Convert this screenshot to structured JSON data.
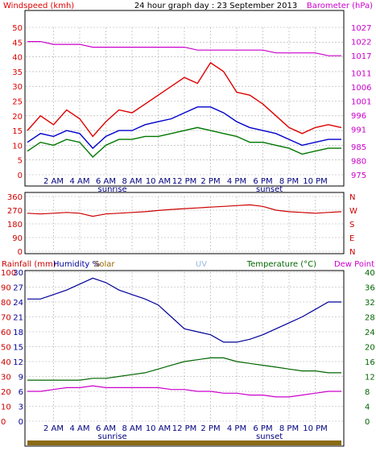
{
  "colors": {
    "wind_speed": "#dd0000",
    "wind_gust": "#dd0000",
    "wind_avg": "#0000cc",
    "wind_low": "#007700",
    "barometer": "#cc00cc",
    "direction": "#cc0000",
    "humidity": "#000099",
    "temperature": "#006600",
    "dew_point": "#cc00cc",
    "rainfall": "#cc0000",
    "solar": "#996600",
    "uv": "#99bbdd",
    "rain_bar": "#8b6b12",
    "grid": "#aaaaaa"
  },
  "chart_data": [
    {
      "type": "line",
      "title": "24 hour graph day : 23 September 2013",
      "left_axis_label": "Windspeed (kmh)",
      "right_axis_label": "Barometer (hPa)",
      "x_tick_labels": [
        "2 AM",
        "4 AM",
        "6 AM",
        "8 AM",
        "10 AM",
        "12 PM",
        "2 PM",
        "4 PM",
        "6 PM",
        "8 PM",
        "10 PM"
      ],
      "sunrise_label": "sunrise",
      "sunset_label": "sunset",
      "y_ticks": [
        0,
        5,
        10,
        15,
        20,
        25,
        30,
        35,
        40,
        45,
        50
      ],
      "y_tick_labels": [
        "0",
        "5",
        "10",
        "15",
        "20",
        "25",
        "30",
        "35",
        "40",
        "45",
        "50"
      ],
      "y_right_ticks": [
        975,
        980,
        985,
        991,
        996,
        1001,
        1006,
        1011,
        1017,
        1022,
        1027
      ],
      "y_right_tick_labels": [
        "975",
        "980",
        "985",
        "991",
        "996",
        "1001",
        "1006",
        "1011",
        "1017",
        "1022",
        "1027"
      ],
      "ylim": [
        0,
        50
      ],
      "ylim_right": [
        975,
        1027
      ],
      "x_hours": [
        0,
        1,
        2,
        3,
        4,
        5,
        6,
        7,
        8,
        9,
        10,
        11,
        12,
        13,
        14,
        15,
        16,
        17,
        18,
        19,
        20,
        21,
        22,
        23,
        24
      ],
      "series": [
        {
          "key": "gust",
          "axis": "left",
          "values": [
            15,
            20,
            17,
            22,
            19,
            13,
            18,
            22,
            21,
            24,
            27,
            30,
            33,
            31,
            38,
            35,
            28,
            27,
            24,
            20,
            16,
            14,
            16,
            17,
            16
          ]
        },
        {
          "key": "avg",
          "axis": "left",
          "values": [
            11,
            14,
            13,
            15,
            14,
            9,
            13,
            15,
            15,
            17,
            18,
            19,
            21,
            23,
            23,
            21,
            18,
            16,
            15,
            14,
            12,
            10,
            11,
            12,
            12
          ]
        },
        {
          "key": "low",
          "axis": "left",
          "values": [
            8,
            11,
            10,
            12,
            11,
            6,
            10,
            12,
            12,
            13,
            13,
            14,
            15,
            16,
            15,
            14,
            13,
            11,
            11,
            10,
            9,
            7,
            8,
            9,
            9
          ]
        },
        {
          "key": "barometer",
          "axis": "right",
          "values": [
            1022,
            1022,
            1021,
            1021,
            1021,
            1020,
            1020,
            1020,
            1020,
            1020,
            1020,
            1020,
            1020,
            1019,
            1019,
            1019,
            1019,
            1019,
            1019,
            1018,
            1018,
            1018,
            1018,
            1017,
            1017
          ]
        }
      ]
    },
    {
      "type": "line",
      "y_tick_labels": [
        "0",
        "90",
        "180",
        "270",
        "360"
      ],
      "y_ticks": [
        0,
        90,
        180,
        270,
        360
      ],
      "compass_labels": [
        "N",
        "W",
        "S",
        "E",
        "N"
      ],
      "ylim": [
        0,
        360
      ],
      "x_hours": [
        0,
        1,
        2,
        3,
        4,
        5,
        6,
        7,
        8,
        9,
        10,
        11,
        12,
        13,
        14,
        15,
        16,
        17,
        18,
        19,
        20,
        21,
        22,
        23,
        24
      ],
      "series": [
        {
          "key": "direction",
          "values": [
            250,
            245,
            250,
            255,
            250,
            230,
            245,
            250,
            255,
            260,
            268,
            275,
            280,
            285,
            290,
            295,
            300,
            305,
            295,
            270,
            260,
            255,
            250,
            255,
            260
          ]
        }
      ]
    },
    {
      "type": "line",
      "labels": {
        "rainfall": "Rainfall (mm)",
        "humidity": "Humidity %",
        "solar": "Solar",
        "uv": "UV",
        "temperature": "Temperature (°C)",
        "dew_point": "Dew Point"
      },
      "x_tick_labels": [
        "2 AM",
        "4 AM",
        "6 AM",
        "8 AM",
        "10 AM",
        "12 PM",
        "2 PM",
        "4 PM",
        "6 PM",
        "8 PM",
        "10 PM"
      ],
      "sunrise_label": "sunrise",
      "sunset_label": "sunset",
      "rain_tick_labels": [
        "0",
        "10",
        "20",
        "30",
        "40",
        "50",
        "60",
        "70",
        "80",
        "90",
        "100"
      ],
      "humidity_tick_labels": [
        "0",
        "3",
        "6",
        "9",
        "12",
        "15",
        "18",
        "21",
        "24",
        "27",
        "30"
      ],
      "temp_ticks": [
        0,
        4,
        8,
        12,
        16,
        20,
        24,
        28,
        32,
        36,
        40
      ],
      "temp_tick_labels": [
        "0",
        "4",
        "8",
        "12",
        "16",
        "20",
        "24",
        "28",
        "32",
        "36",
        "40"
      ],
      "ylim_temp": [
        0,
        40
      ],
      "ylim_humidity": [
        0,
        100
      ],
      "x_hours": [
        0,
        1,
        2,
        3,
        4,
        5,
        6,
        7,
        8,
        9,
        10,
        11,
        12,
        13,
        14,
        15,
        16,
        17,
        18,
        19,
        20,
        21,
        22,
        23,
        24
      ],
      "series": [
        {
          "key": "humidity",
          "axis": "humidity",
          "values": [
            82,
            82,
            85,
            88,
            92,
            96,
            93,
            88,
            85,
            82,
            78,
            70,
            62,
            60,
            58,
            53,
            53,
            55,
            58,
            62,
            66,
            70,
            75,
            80,
            80
          ]
        },
        {
          "key": "temperature",
          "axis": "temp",
          "values": [
            11,
            11,
            11,
            11,
            11,
            11.5,
            11.5,
            12,
            12.5,
            13,
            14,
            15,
            16,
            16.5,
            17,
            17,
            16,
            15.5,
            15,
            14.5,
            14,
            13.5,
            13.5,
            13,
            13
          ]
        },
        {
          "key": "dew_point",
          "axis": "temp",
          "values": [
            8,
            8,
            8.5,
            9,
            9,
            9.5,
            9,
            9,
            9,
            9,
            9,
            8.5,
            8.5,
            8,
            8,
            7.5,
            7.5,
            7,
            7,
            6.5,
            6.5,
            7,
            7.5,
            8,
            8
          ]
        },
        {
          "key": "rainfall",
          "axis": "humidity",
          "values": [
            0,
            0,
            0,
            0,
            0,
            0,
            0,
            0,
            0,
            0,
            0,
            0,
            0,
            0,
            0,
            0,
            0,
            0,
            0,
            0,
            0,
            0,
            0,
            0,
            0
          ]
        }
      ]
    }
  ]
}
